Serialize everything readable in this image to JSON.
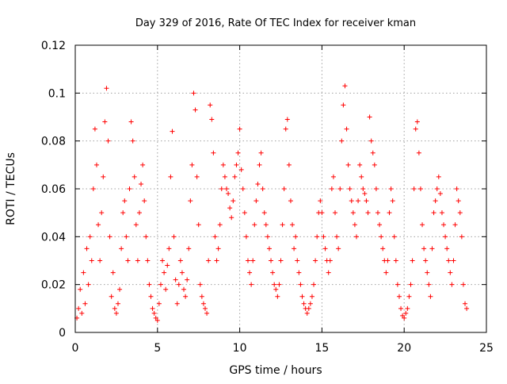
{
  "chart_data": {
    "type": "scatter",
    "title": "Day 329 of 2016, Rate Of TEC Index for receiver kman",
    "xlabel": "GPS time / hours",
    "ylabel": "ROTI / TECUs",
    "xlim": [
      0,
      25
    ],
    "ylim": [
      0,
      0.12
    ],
    "x_ticks": [
      0,
      5,
      10,
      15,
      20,
      25
    ],
    "y_ticks": [
      0,
      0.02,
      0.04,
      0.06,
      0.08,
      0.1,
      0.12
    ],
    "grid": true,
    "marker": "+",
    "series": [
      {
        "color": "#ff0000",
        "points": [
          [
            0.1,
            0.006
          ],
          [
            0.2,
            0.01
          ],
          [
            0.3,
            0.018
          ],
          [
            0.4,
            0.008
          ],
          [
            0.5,
            0.025
          ],
          [
            0.6,
            0.012
          ],
          [
            0.7,
            0.035
          ],
          [
            0.8,
            0.02
          ],
          [
            0.9,
            0.04
          ],
          [
            1.0,
            0.03
          ],
          [
            1.1,
            0.06
          ],
          [
            1.2,
            0.085
          ],
          [
            1.3,
            0.07
          ],
          [
            1.4,
            0.045
          ],
          [
            1.5,
            0.03
          ],
          [
            1.6,
            0.05
          ],
          [
            1.7,
            0.065
          ],
          [
            1.8,
            0.088
          ],
          [
            1.9,
            0.102
          ],
          [
            2.0,
            0.08
          ],
          [
            2.1,
            0.04
          ],
          [
            2.2,
            0.015
          ],
          [
            2.3,
            0.025
          ],
          [
            2.4,
            0.01
          ],
          [
            2.5,
            0.008
          ],
          [
            2.6,
            0.012
          ],
          [
            2.7,
            0.018
          ],
          [
            2.8,
            0.035
          ],
          [
            2.9,
            0.05
          ],
          [
            3.0,
            0.055
          ],
          [
            3.1,
            0.04
          ],
          [
            3.2,
            0.03
          ],
          [
            3.3,
            0.06
          ],
          [
            3.4,
            0.088
          ],
          [
            3.5,
            0.08
          ],
          [
            3.6,
            0.065
          ],
          [
            3.7,
            0.045
          ],
          [
            3.8,
            0.03
          ],
          [
            3.9,
            0.05
          ],
          [
            4.0,
            0.062
          ],
          [
            4.1,
            0.07
          ],
          [
            4.2,
            0.055
          ],
          [
            4.3,
            0.04
          ],
          [
            4.4,
            0.03
          ],
          [
            4.5,
            0.02
          ],
          [
            4.6,
            0.015
          ],
          [
            4.7,
            0.01
          ],
          [
            4.8,
            0.008
          ],
          [
            4.9,
            0.006
          ],
          [
            5.0,
            0.005
          ],
          [
            5.1,
            0.012
          ],
          [
            5.2,
            0.02
          ],
          [
            5.3,
            0.03
          ],
          [
            5.4,
            0.025
          ],
          [
            5.5,
            0.018
          ],
          [
            5.6,
            0.028
          ],
          [
            5.7,
            0.035
          ],
          [
            5.8,
            0.065
          ],
          [
            5.9,
            0.084
          ],
          [
            6.0,
            0.04
          ],
          [
            6.1,
            0.022
          ],
          [
            6.2,
            0.012
          ],
          [
            6.3,
            0.02
          ],
          [
            6.4,
            0.03
          ],
          [
            6.5,
            0.025
          ],
          [
            6.6,
            0.018
          ],
          [
            6.7,
            0.015
          ],
          [
            6.8,
            0.022
          ],
          [
            6.9,
            0.035
          ],
          [
            7.0,
            0.055
          ],
          [
            7.1,
            0.07
          ],
          [
            7.2,
            0.1
          ],
          [
            7.3,
            0.093
          ],
          [
            7.4,
            0.065
          ],
          [
            7.5,
            0.045
          ],
          [
            7.6,
            0.02
          ],
          [
            7.7,
            0.015
          ],
          [
            7.8,
            0.012
          ],
          [
            7.9,
            0.01
          ],
          [
            8.0,
            0.008
          ],
          [
            8.1,
            0.03
          ],
          [
            8.2,
            0.095
          ],
          [
            8.3,
            0.089
          ],
          [
            8.4,
            0.075
          ],
          [
            8.5,
            0.04
          ],
          [
            8.6,
            0.03
          ],
          [
            8.7,
            0.035
          ],
          [
            8.8,
            0.045
          ],
          [
            8.9,
            0.06
          ],
          [
            9.0,
            0.07
          ],
          [
            9.1,
            0.065
          ],
          [
            9.2,
            0.06
          ],
          [
            9.3,
            0.058
          ],
          [
            9.4,
            0.052
          ],
          [
            9.5,
            0.048
          ],
          [
            9.6,
            0.055
          ],
          [
            9.7,
            0.065
          ],
          [
            9.8,
            0.07
          ],
          [
            9.9,
            0.075
          ],
          [
            10.0,
            0.085
          ],
          [
            10.1,
            0.068
          ],
          [
            10.2,
            0.06
          ],
          [
            10.3,
            0.05
          ],
          [
            10.4,
            0.04
          ],
          [
            10.5,
            0.03
          ],
          [
            10.6,
            0.025
          ],
          [
            10.7,
            0.02
          ],
          [
            10.8,
            0.03
          ],
          [
            10.9,
            0.045
          ],
          [
            11.0,
            0.055
          ],
          [
            11.1,
            0.062
          ],
          [
            11.2,
            0.07
          ],
          [
            11.3,
            0.075
          ],
          [
            11.4,
            0.06
          ],
          [
            11.5,
            0.05
          ],
          [
            11.6,
            0.045
          ],
          [
            11.7,
            0.04
          ],
          [
            11.8,
            0.035
          ],
          [
            11.9,
            0.03
          ],
          [
            12.0,
            0.025
          ],
          [
            12.1,
            0.02
          ],
          [
            12.2,
            0.018
          ],
          [
            12.3,
            0.015
          ],
          [
            12.4,
            0.02
          ],
          [
            12.5,
            0.03
          ],
          [
            12.6,
            0.045
          ],
          [
            12.7,
            0.06
          ],
          [
            12.8,
            0.085
          ],
          [
            12.9,
            0.089
          ],
          [
            13.0,
            0.07
          ],
          [
            13.1,
            0.055
          ],
          [
            13.2,
            0.045
          ],
          [
            13.3,
            0.035
          ],
          [
            13.4,
            0.04
          ],
          [
            13.5,
            0.03
          ],
          [
            13.6,
            0.025
          ],
          [
            13.7,
            0.02
          ],
          [
            13.8,
            0.015
          ],
          [
            13.9,
            0.012
          ],
          [
            14.0,
            0.01
          ],
          [
            14.1,
            0.008
          ],
          [
            14.2,
            0.01
          ],
          [
            14.3,
            0.012
          ],
          [
            14.4,
            0.015
          ],
          [
            14.5,
            0.02
          ],
          [
            14.6,
            0.03
          ],
          [
            14.7,
            0.04
          ],
          [
            14.8,
            0.05
          ],
          [
            14.9,
            0.055
          ],
          [
            15.0,
            0.05
          ],
          [
            15.1,
            0.04
          ],
          [
            15.2,
            0.035
          ],
          [
            15.3,
            0.03
          ],
          [
            15.4,
            0.025
          ],
          [
            15.5,
            0.03
          ],
          [
            15.6,
            0.06
          ],
          [
            15.7,
            0.065
          ],
          [
            15.8,
            0.05
          ],
          [
            15.9,
            0.04
          ],
          [
            16.0,
            0.035
          ],
          [
            16.1,
            0.06
          ],
          [
            16.2,
            0.08
          ],
          [
            16.3,
            0.095
          ],
          [
            16.4,
            0.103
          ],
          [
            16.5,
            0.085
          ],
          [
            16.6,
            0.07
          ],
          [
            16.7,
            0.06
          ],
          [
            16.8,
            0.055
          ],
          [
            16.9,
            0.05
          ],
          [
            17.0,
            0.045
          ],
          [
            17.1,
            0.04
          ],
          [
            17.2,
            0.055
          ],
          [
            17.3,
            0.07
          ],
          [
            17.4,
            0.065
          ],
          [
            17.5,
            0.06
          ],
          [
            17.6,
            0.058
          ],
          [
            17.7,
            0.055
          ],
          [
            17.8,
            0.05
          ],
          [
            17.9,
            0.09
          ],
          [
            18.0,
            0.08
          ],
          [
            18.1,
            0.075
          ],
          [
            18.2,
            0.07
          ],
          [
            18.3,
            0.06
          ],
          [
            18.4,
            0.05
          ],
          [
            18.5,
            0.045
          ],
          [
            18.6,
            0.04
          ],
          [
            18.7,
            0.035
          ],
          [
            18.8,
            0.03
          ],
          [
            18.9,
            0.025
          ],
          [
            19.0,
            0.03
          ],
          [
            19.1,
            0.05
          ],
          [
            19.2,
            0.06
          ],
          [
            19.3,
            0.055
          ],
          [
            19.4,
            0.04
          ],
          [
            19.5,
            0.03
          ],
          [
            19.6,
            0.02
          ],
          [
            19.7,
            0.015
          ],
          [
            19.8,
            0.01
          ],
          [
            19.9,
            0.007
          ],
          [
            20.0,
            0.006
          ],
          [
            20.1,
            0.008
          ],
          [
            20.2,
            0.01
          ],
          [
            20.3,
            0.015
          ],
          [
            20.4,
            0.02
          ],
          [
            20.5,
            0.03
          ],
          [
            20.6,
            0.06
          ],
          [
            20.7,
            0.085
          ],
          [
            20.8,
            0.088
          ],
          [
            20.9,
            0.075
          ],
          [
            21.0,
            0.06
          ],
          [
            21.1,
            0.045
          ],
          [
            21.2,
            0.035
          ],
          [
            21.3,
            0.03
          ],
          [
            21.4,
            0.025
          ],
          [
            21.5,
            0.02
          ],
          [
            21.6,
            0.015
          ],
          [
            21.7,
            0.035
          ],
          [
            21.8,
            0.05
          ],
          [
            21.9,
            0.055
          ],
          [
            22.0,
            0.06
          ],
          [
            22.1,
            0.065
          ],
          [
            22.2,
            0.058
          ],
          [
            22.3,
            0.05
          ],
          [
            22.4,
            0.045
          ],
          [
            22.5,
            0.04
          ],
          [
            22.6,
            0.035
          ],
          [
            22.7,
            0.03
          ],
          [
            22.8,
            0.025
          ],
          [
            22.9,
            0.02
          ],
          [
            23.0,
            0.03
          ],
          [
            23.1,
            0.045
          ],
          [
            23.2,
            0.06
          ],
          [
            23.3,
            0.055
          ],
          [
            23.4,
            0.05
          ],
          [
            23.5,
            0.04
          ],
          [
            23.6,
            0.02
          ],
          [
            23.7,
            0.012
          ],
          [
            23.8,
            0.01
          ]
        ]
      }
    ]
  }
}
